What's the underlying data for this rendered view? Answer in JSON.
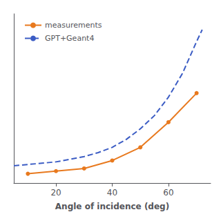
{
  "chart_data": {
    "type": "line",
    "xlabel": "Angle of incidence (deg)",
    "xlim": [
      5,
      75
    ],
    "xticks": [
      20,
      40,
      60
    ],
    "ylim": [
      0.04,
      0.68
    ],
    "yticks": [],
    "tick_labels": "x",
    "grid": false,
    "legend": "upper left",
    "series": [
      {
        "name": "measurements",
        "color": "#E8791E",
        "marker": "circle",
        "line_style": "solid",
        "x": [
          10,
          20,
          30,
          40,
          50,
          60,
          70
        ],
        "values": [
          0.075,
          0.085,
          0.095,
          0.125,
          0.175,
          0.27,
          0.38
        ]
      },
      {
        "name": "GPT+Geant4",
        "color": "#3B5CC4",
        "marker": "none",
        "line_style": "dashed",
        "x": [
          5,
          10,
          15,
          20,
          25,
          30,
          35,
          40,
          45,
          50,
          55,
          60,
          65,
          70,
          72
        ],
        "values": [
          0.105,
          0.11,
          0.115,
          0.12,
          0.13,
          0.14,
          0.155,
          0.175,
          0.205,
          0.245,
          0.295,
          0.365,
          0.455,
          0.575,
          0.62
        ]
      }
    ]
  }
}
